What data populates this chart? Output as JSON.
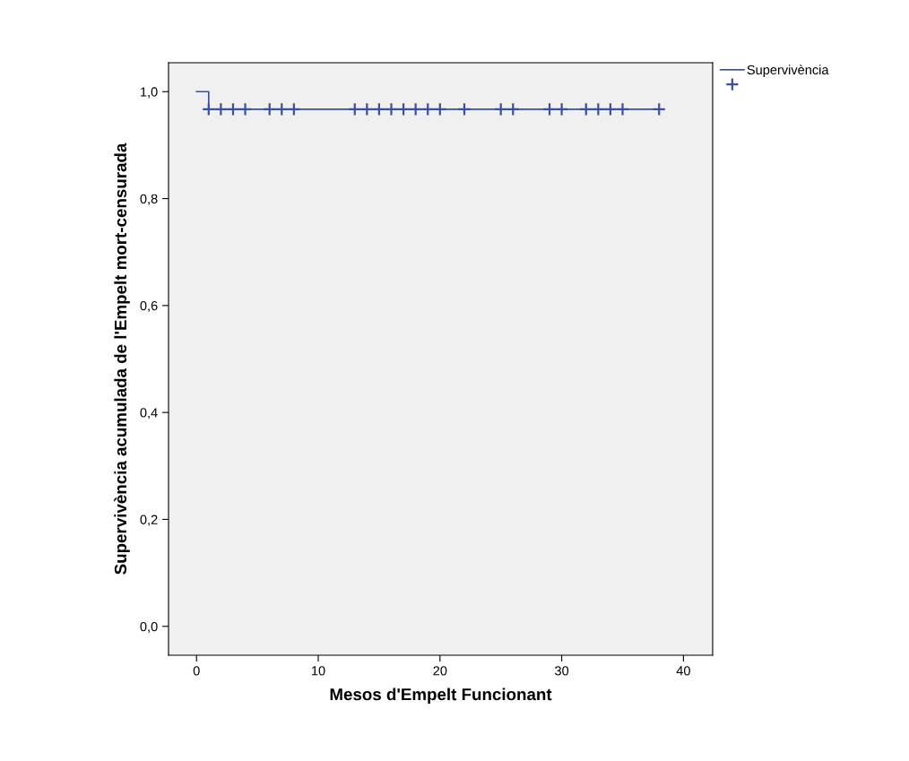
{
  "chart_data": {
    "type": "step",
    "xlabel": "Mesos d'Empelt Funcionant",
    "ylabel": "Supervivència acumulada de l'Empelt mort-censurada",
    "xlim": [
      -2.3,
      42.4
    ],
    "xticks": [
      0,
      10,
      20,
      30,
      40
    ],
    "ylim": [
      -0.054,
      1.054
    ],
    "yticks": [
      {
        "value": 0,
        "label": "0,0"
      },
      {
        "value": 0.2,
        "label": "0,2"
      },
      {
        "value": 0.4,
        "label": "0,4"
      },
      {
        "value": 0.6,
        "label": "0,6"
      },
      {
        "value": 0.8,
        "label": "0,8"
      },
      {
        "value": 1.0,
        "label": "1,0"
      }
    ],
    "grid": false,
    "legend": "top right",
    "series": [
      {
        "name": "Supervivència",
        "color": "#3b4fa0",
        "marker": "none",
        "x": [
          0,
          1,
          38
        ],
        "values": [
          1.0,
          0.967,
          0.967
        ]
      },
      {
        "type": "scatter",
        "color": "#3b4fa0",
        "marker": "cross",
        "x": [
          1,
          2,
          3,
          4,
          6,
          7,
          8,
          13,
          14,
          15,
          16,
          17,
          18,
          19,
          20,
          22,
          25,
          26,
          29,
          30,
          32,
          33,
          34,
          35,
          38
        ],
        "values": [
          0.967,
          0.967,
          0.967,
          0.967,
          0.967,
          0.967,
          0.967,
          0.967,
          0.967,
          0.967,
          0.967,
          0.967,
          0.967,
          0.967,
          0.967,
          0.967,
          0.967,
          0.967,
          0.967,
          0.967,
          0.967,
          0.967,
          0.967,
          0.967,
          0.967
        ]
      }
    ]
  }
}
